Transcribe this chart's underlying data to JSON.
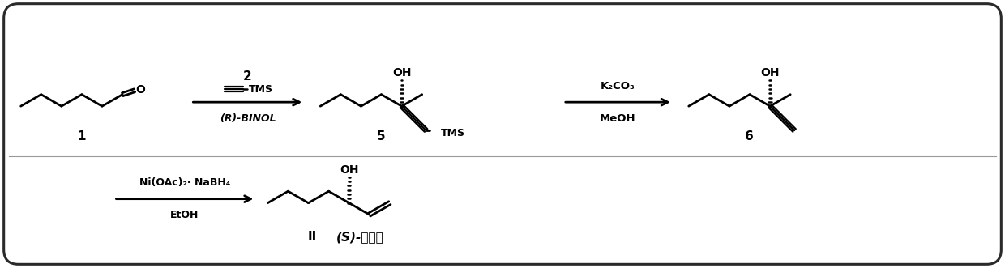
{
  "background_color": "#ffffff",
  "border_color": "#2a2a2a",
  "fig_width": 12.4,
  "fig_height": 3.31,
  "dpi": 100,
  "compound1_label": "1",
  "compound5_label": "5",
  "compound6_label": "6",
  "compound_II_label": "II",
  "reagent1_num": "2",
  "reagent1_alkyne": "≡—TMS",
  "reagent1_catalyst": "(R)-BINOL",
  "reagent2_line1": "K₂CO₃",
  "reagent2_line2": "MeOH",
  "reagent3_line1": "Ni(OAc)₂· NaBH₄",
  "reagent3_line2": "EtOH",
  "product_II_name": "(S)-松茌醇",
  "OH_label": "OH",
  "TMS_label": "TMS",
  "O_label": "O",
  "arrow_color": "#000000",
  "bond_color": "#000000"
}
